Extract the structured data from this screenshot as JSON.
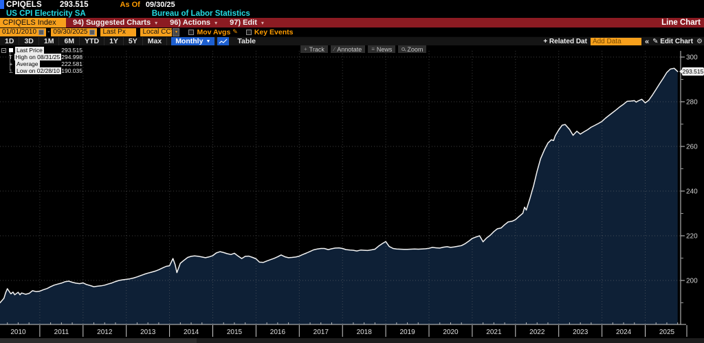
{
  "header": {
    "ticker": "CPIQELS",
    "price": "293.515",
    "as_of_label": "As Of",
    "as_of_date": "09/30/25",
    "security_name": "US CPI Electricity SA",
    "source": "Bureau of Labor Statistics"
  },
  "menu_bar": {
    "ticker_field": "CPIQELS Index",
    "items": [
      "94) Suggested Charts",
      "96) Actions",
      "97) Edit"
    ],
    "view_label": "Line Chart"
  },
  "controls": {
    "start_date": "01/01/2010",
    "end_date": "09/30/2025",
    "range_separator": "-",
    "field": "Last Px",
    "currency": "Local CCY",
    "mov_avgs_label": "Mov Avgs",
    "key_events_label": "Key Events"
  },
  "tabs": {
    "ranges": [
      "1D",
      "3D",
      "1M",
      "6M",
      "YTD",
      "1Y",
      "5Y",
      "Max"
    ],
    "period": "Monthly",
    "table_label": "Table",
    "related_data_label": "+ Related Dat",
    "add_data_placeholder": "Add Data",
    "collapse_label": "«",
    "edit_chart_label": "Edit Chart"
  },
  "chart_toolbar": [
    {
      "icon": "crosshair-icon",
      "label": "Track"
    },
    {
      "icon": "annotate-pencil-icon",
      "label": "Annotate"
    },
    {
      "icon": "news-list-icon",
      "label": "News"
    },
    {
      "icon": "zoom-magnifier-icon",
      "label": "Zoom"
    }
  ],
  "legend": {
    "items": [
      {
        "marker": "square",
        "label": "Last Price",
        "value": "293.515"
      },
      {
        "marker": "high",
        "label": "High on 08/31/25",
        "value": "294.998"
      },
      {
        "marker": "average",
        "label": "Average",
        "value": "222.581"
      },
      {
        "marker": "low",
        "label": "Low on 02/28/10",
        "value": "190.035"
      }
    ]
  },
  "last_price_badge": "293.515",
  "colors": {
    "accent_orange": "#f7a01c",
    "amber_text": "#ff9c00",
    "cyan_text": "#24dbe2",
    "menu_red": "#8c1b22",
    "selected_blue": "#1d5fd0",
    "line": "#f4f4f4",
    "area_fill": "#0e2036",
    "axis_text": "#d4d4d4"
  },
  "chart_data": {
    "type": "line",
    "title": "US CPI Electricity SA (CPIQELS Index)",
    "x_unit": "year",
    "xlim": [
      2010.0,
      2025.83
    ],
    "ylim": [
      180,
      306
    ],
    "yticks": [
      200,
      220,
      240,
      260,
      280,
      300
    ],
    "yticks_minor": [
      190,
      210,
      230,
      250,
      270,
      290
    ],
    "xticks_years": [
      2010,
      2011,
      2012,
      2013,
      2014,
      2015,
      2016,
      2017,
      2018,
      2019,
      2020,
      2021,
      2022,
      2023,
      2024,
      2025
    ],
    "grid": "dotted",
    "legend_position": "top-left",
    "last": {
      "date": "09/30/25",
      "value": 293.515
    },
    "high": {
      "date": "08/31/25",
      "value": 294.998
    },
    "low": {
      "date": "02/28/10",
      "value": 190.035
    },
    "average": 222.581,
    "points": [
      [
        2010.0,
        191.2
      ],
      [
        2010.08,
        190.0
      ],
      [
        2010.17,
        192.0
      ],
      [
        2010.21,
        194.5
      ],
      [
        2010.25,
        196.3
      ],
      [
        2010.33,
        194.0
      ],
      [
        2010.38,
        194.8
      ],
      [
        2010.42,
        193.6
      ],
      [
        2010.5,
        194.7
      ],
      [
        2010.54,
        193.6
      ],
      [
        2010.58,
        194.4
      ],
      [
        2010.67,
        193.8
      ],
      [
        2010.75,
        194.2
      ],
      [
        2010.83,
        195.4
      ],
      [
        2010.92,
        195.0
      ],
      [
        2011.0,
        195.2
      ],
      [
        2011.08,
        195.8
      ],
      [
        2011.17,
        196.4
      ],
      [
        2011.25,
        197.2
      ],
      [
        2011.33,
        197.9
      ],
      [
        2011.42,
        198.4
      ],
      [
        2011.5,
        198.8
      ],
      [
        2011.58,
        199.4
      ],
      [
        2011.67,
        199.7
      ],
      [
        2011.75,
        199.2
      ],
      [
        2011.83,
        198.8
      ],
      [
        2011.92,
        198.6
      ],
      [
        2012.0,
        198.9
      ],
      [
        2012.08,
        198.2
      ],
      [
        2012.17,
        197.7
      ],
      [
        2012.25,
        197.2
      ],
      [
        2012.33,
        197.4
      ],
      [
        2012.42,
        197.6
      ],
      [
        2012.5,
        197.9
      ],
      [
        2012.58,
        198.4
      ],
      [
        2012.67,
        198.9
      ],
      [
        2012.75,
        199.5
      ],
      [
        2012.83,
        200.0
      ],
      [
        2012.92,
        200.3
      ],
      [
        2013.0,
        200.5
      ],
      [
        2013.08,
        200.7
      ],
      [
        2013.17,
        201.1
      ],
      [
        2013.25,
        201.6
      ],
      [
        2013.33,
        202.2
      ],
      [
        2013.42,
        202.8
      ],
      [
        2013.5,
        203.3
      ],
      [
        2013.58,
        203.7
      ],
      [
        2013.67,
        204.2
      ],
      [
        2013.75,
        204.8
      ],
      [
        2013.83,
        205.5
      ],
      [
        2013.92,
        206.3
      ],
      [
        2014.0,
        206.6
      ],
      [
        2014.08,
        209.8
      ],
      [
        2014.13,
        207.0
      ],
      [
        2014.17,
        203.5
      ],
      [
        2014.25,
        207.7
      ],
      [
        2014.33,
        209.0
      ],
      [
        2014.42,
        210.3
      ],
      [
        2014.5,
        210.8
      ],
      [
        2014.58,
        211.0
      ],
      [
        2014.67,
        210.8
      ],
      [
        2014.75,
        210.5
      ],
      [
        2014.83,
        210.2
      ],
      [
        2014.92,
        210.6
      ],
      [
        2015.0,
        211.1
      ],
      [
        2015.08,
        212.3
      ],
      [
        2015.17,
        212.9
      ],
      [
        2015.25,
        212.5
      ],
      [
        2015.33,
        212.0
      ],
      [
        2015.42,
        211.6
      ],
      [
        2015.5,
        212.2
      ],
      [
        2015.58,
        211.0
      ],
      [
        2015.67,
        209.8
      ],
      [
        2015.75,
        210.8
      ],
      [
        2015.83,
        210.9
      ],
      [
        2015.92,
        210.3
      ],
      [
        2016.0,
        209.7
      ],
      [
        2016.08,
        208.2
      ],
      [
        2016.17,
        208.1
      ],
      [
        2016.25,
        208.7
      ],
      [
        2016.33,
        209.3
      ],
      [
        2016.42,
        209.9
      ],
      [
        2016.5,
        210.6
      ],
      [
        2016.58,
        211.4
      ],
      [
        2016.67,
        210.6
      ],
      [
        2016.75,
        210.2
      ],
      [
        2016.83,
        210.3
      ],
      [
        2016.92,
        210.5
      ],
      [
        2017.0,
        210.9
      ],
      [
        2017.08,
        211.6
      ],
      [
        2017.17,
        212.3
      ],
      [
        2017.25,
        213.0
      ],
      [
        2017.33,
        213.7
      ],
      [
        2017.42,
        214.1
      ],
      [
        2017.5,
        214.3
      ],
      [
        2017.58,
        214.3
      ],
      [
        2017.67,
        213.8
      ],
      [
        2017.75,
        214.2
      ],
      [
        2017.83,
        214.5
      ],
      [
        2017.92,
        214.6
      ],
      [
        2018.0,
        214.3
      ],
      [
        2018.08,
        213.8
      ],
      [
        2018.17,
        213.6
      ],
      [
        2018.25,
        213.5
      ],
      [
        2018.33,
        213.2
      ],
      [
        2018.42,
        213.6
      ],
      [
        2018.5,
        213.5
      ],
      [
        2018.58,
        213.4
      ],
      [
        2018.67,
        213.7
      ],
      [
        2018.75,
        214.0
      ],
      [
        2018.83,
        215.3
      ],
      [
        2018.92,
        216.5
      ],
      [
        2019.0,
        217.4
      ],
      [
        2019.08,
        215.2
      ],
      [
        2019.17,
        214.3
      ],
      [
        2019.25,
        214.1
      ],
      [
        2019.33,
        214.0
      ],
      [
        2019.42,
        213.9
      ],
      [
        2019.5,
        213.9
      ],
      [
        2019.58,
        214.0
      ],
      [
        2019.67,
        214.1
      ],
      [
        2019.75,
        214.0
      ],
      [
        2019.83,
        214.1
      ],
      [
        2019.92,
        214.2
      ],
      [
        2020.0,
        214.4
      ],
      [
        2020.08,
        214.8
      ],
      [
        2020.17,
        214.6
      ],
      [
        2020.25,
        214.5
      ],
      [
        2020.33,
        214.9
      ],
      [
        2020.42,
        215.1
      ],
      [
        2020.5,
        214.8
      ],
      [
        2020.58,
        215.0
      ],
      [
        2020.67,
        215.3
      ],
      [
        2020.75,
        215.6
      ],
      [
        2020.83,
        216.4
      ],
      [
        2020.92,
        217.6
      ],
      [
        2021.0,
        218.8
      ],
      [
        2021.08,
        219.4
      ],
      [
        2021.17,
        220.0
      ],
      [
        2021.25,
        217.3
      ],
      [
        2021.33,
        219.0
      ],
      [
        2021.42,
        220.3
      ],
      [
        2021.5,
        221.9
      ],
      [
        2021.58,
        223.1
      ],
      [
        2021.67,
        223.5
      ],
      [
        2021.75,
        225.0
      ],
      [
        2021.83,
        226.2
      ],
      [
        2021.92,
        226.5
      ],
      [
        2022.0,
        227.2
      ],
      [
        2022.08,
        228.6
      ],
      [
        2022.17,
        230.1
      ],
      [
        2022.21,
        232.8
      ],
      [
        2022.25,
        231.5
      ],
      [
        2022.33,
        236.5
      ],
      [
        2022.42,
        242.5
      ],
      [
        2022.5,
        249.0
      ],
      [
        2022.58,
        254.5
      ],
      [
        2022.67,
        258.5
      ],
      [
        2022.75,
        261.5
      ],
      [
        2022.83,
        263.0
      ],
      [
        2022.88,
        262.6
      ],
      [
        2022.92,
        264.8
      ],
      [
        2023.0,
        267.4
      ],
      [
        2023.08,
        269.5
      ],
      [
        2023.15,
        269.8
      ],
      [
        2023.25,
        267.6
      ],
      [
        2023.33,
        265.0
      ],
      [
        2023.42,
        266.8
      ],
      [
        2023.5,
        265.5
      ],
      [
        2023.58,
        266.5
      ],
      [
        2023.67,
        267.5
      ],
      [
        2023.75,
        268.6
      ],
      [
        2023.83,
        269.4
      ],
      [
        2023.92,
        270.3
      ],
      [
        2024.0,
        271.2
      ],
      [
        2024.08,
        272.6
      ],
      [
        2024.17,
        274.0
      ],
      [
        2024.25,
        275.2
      ],
      [
        2024.33,
        276.4
      ],
      [
        2024.42,
        277.8
      ],
      [
        2024.5,
        278.9
      ],
      [
        2024.58,
        280.2
      ],
      [
        2024.67,
        280.3
      ],
      [
        2024.75,
        280.5
      ],
      [
        2024.79,
        279.8
      ],
      [
        2024.83,
        280.3
      ],
      [
        2024.92,
        281.1
      ],
      [
        2025.0,
        279.5
      ],
      [
        2025.08,
        280.6
      ],
      [
        2025.17,
        283.1
      ],
      [
        2025.25,
        285.5
      ],
      [
        2025.33,
        288.0
      ],
      [
        2025.42,
        290.6
      ],
      [
        2025.5,
        293.1
      ],
      [
        2025.58,
        294.6
      ],
      [
        2025.67,
        294.998
      ],
      [
        2025.75,
        293.515
      ]
    ]
  },
  "x_axis_years": [
    "2010",
    "2011",
    "2012",
    "2013",
    "2014",
    "2015",
    "2016",
    "2017",
    "2018",
    "2019",
    "2020",
    "2021",
    "2022",
    "2023",
    "2024",
    "2025"
  ]
}
